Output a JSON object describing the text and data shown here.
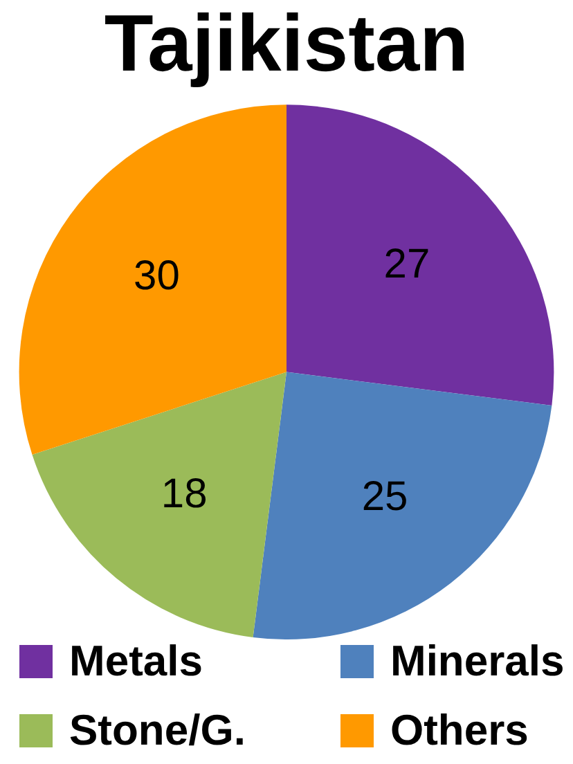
{
  "chart_data": {
    "type": "pie",
    "title": "Tajikistan",
    "categories": [
      "Metals",
      "Minerals",
      "Stone/G.",
      "Others"
    ],
    "values": [
      27,
      25,
      18,
      30
    ],
    "colors": [
      "#7030a0",
      "#4f81bd",
      "#9bbb59",
      "#ff9900"
    ],
    "data_labels": true,
    "legend": "bottom"
  }
}
